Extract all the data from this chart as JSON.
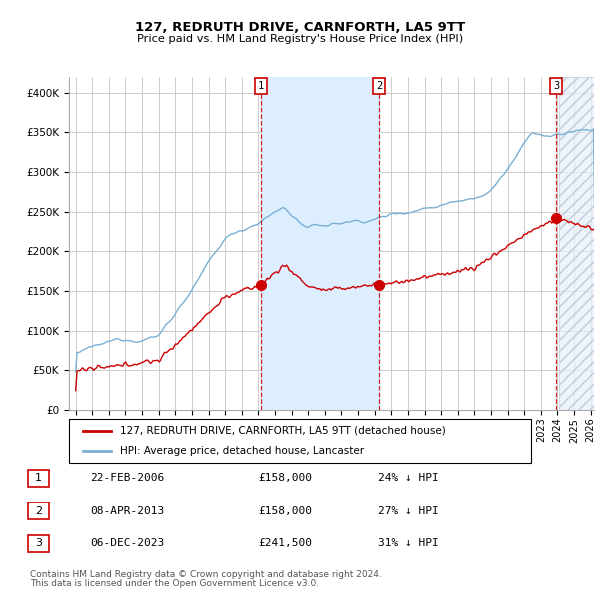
{
  "title": "127, REDRUTH DRIVE, CARNFORTH, LA5 9TT",
  "subtitle": "Price paid vs. HM Land Registry's House Price Index (HPI)",
  "legend_red": "127, REDRUTH DRIVE, CARNFORTH, LA5 9TT (detached house)",
  "legend_blue": "HPI: Average price, detached house, Lancaster",
  "transactions": [
    {
      "num": 1,
      "date": "22-FEB-2006",
      "price": "£158,000",
      "pct": "24% ↓ HPI",
      "x_year": 2006.13,
      "y_val": 158000
    },
    {
      "num": 2,
      "date": "08-APR-2013",
      "price": "£158,000",
      "pct": "27% ↓ HPI",
      "x_year": 2013.27,
      "y_val": 158000
    },
    {
      "num": 3,
      "date": "06-DEC-2023",
      "price": "£241,500",
      "pct": "31% ↓ HPI",
      "x_year": 2023.92,
      "y_val": 241500
    }
  ],
  "footnote1": "Contains HM Land Registry data © Crown copyright and database right 2024.",
  "footnote2": "This data is licensed under the Open Government Licence v3.0.",
  "ylim": [
    0,
    420000
  ],
  "xlim_left": 1994.6,
  "xlim_right": 2026.2,
  "hatch_start": 2024.08,
  "shade_start": 2006.13,
  "shade_end": 2013.27,
  "background_color": "#ffffff",
  "grid_color": "#cccccc",
  "red_color": "#cc0000",
  "blue_color": "#7ab0d4",
  "shade_color": "#ddeeff"
}
